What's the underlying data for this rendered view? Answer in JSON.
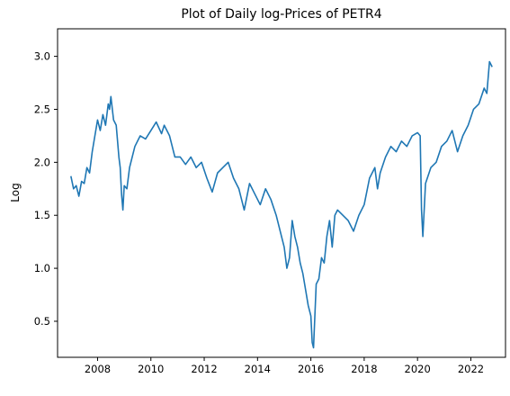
{
  "chart_data": {
    "type": "line",
    "title": "Plot of Daily log-Prices of PETR4",
    "xlabel": "",
    "ylabel": "Log",
    "xlim": [
      2006.5,
      2023.3
    ],
    "ylim": [
      0.16,
      3.26
    ],
    "x_ticks": [
      2008,
      2010,
      2012,
      2014,
      2016,
      2018,
      2020,
      2022
    ],
    "x_tick_labels": [
      "2008",
      "2010",
      "2012",
      "2014",
      "2016",
      "2018",
      "2020",
      "2022"
    ],
    "y_ticks": [
      0.5,
      1.0,
      1.5,
      2.0,
      2.5,
      3.0
    ],
    "y_tick_labels": [
      "0.5",
      "1.0",
      "1.5",
      "2.0",
      "2.5",
      "3.0"
    ],
    "grid": false,
    "line_color": "#1f77b4",
    "series": [
      {
        "x": [
          2007.0,
          2007.1,
          2007.2,
          2007.3,
          2007.4,
          2007.5,
          2007.6,
          2007.7,
          2007.8,
          2007.9,
          2008.0,
          2008.1,
          2008.2,
          2008.3,
          2008.4,
          2008.45,
          2008.5,
          2008.6,
          2008.7,
          2008.8,
          2008.85,
          2008.9,
          2008.95,
          2009.0,
          2009.1,
          2009.2,
          2009.3,
          2009.4,
          2009.6,
          2009.8,
          2010.0,
          2010.2,
          2010.4,
          2010.5,
          2010.7,
          2010.9,
          2011.1,
          2011.3,
          2011.5,
          2011.7,
          2011.9,
          2012.1,
          2012.3,
          2012.5,
          2012.7,
          2012.9,
          2013.1,
          2013.3,
          2013.5,
          2013.7,
          2013.9,
          2014.1,
          2014.3,
          2014.5,
          2014.7,
          2014.85,
          2015.0,
          2015.1,
          2015.2,
          2015.3,
          2015.4,
          2015.5,
          2015.6,
          2015.7,
          2015.8,
          2015.9,
          2016.0,
          2016.05,
          2016.1,
          2016.2,
          2016.3,
          2016.4,
          2016.5,
          2016.6,
          2016.7,
          2016.8,
          2016.9,
          2017.0,
          2017.2,
          2017.4,
          2017.6,
          2017.8,
          2018.0,
          2018.2,
          2018.4,
          2018.5,
          2018.6,
          2018.8,
          2019.0,
          2019.2,
          2019.4,
          2019.6,
          2019.8,
          2020.0,
          2020.1,
          2020.15,
          2020.2,
          2020.3,
          2020.5,
          2020.7,
          2020.9,
          2021.1,
          2021.3,
          2021.5,
          2021.7,
          2021.9,
          2022.1,
          2022.3,
          2022.5,
          2022.6,
          2022.7,
          2022.8
        ],
        "y": [
          1.87,
          1.75,
          1.78,
          1.68,
          1.82,
          1.8,
          1.95,
          1.9,
          2.1,
          2.25,
          2.4,
          2.3,
          2.45,
          2.35,
          2.55,
          2.5,
          2.62,
          2.4,
          2.35,
          2.05,
          1.95,
          1.7,
          1.55,
          1.78,
          1.75,
          1.95,
          2.05,
          2.15,
          2.25,
          2.22,
          2.3,
          2.38,
          2.27,
          2.35,
          2.25,
          2.05,
          2.05,
          1.98,
          2.05,
          1.95,
          2.0,
          1.85,
          1.72,
          1.9,
          1.95,
          2.0,
          1.85,
          1.75,
          1.55,
          1.8,
          1.7,
          1.6,
          1.75,
          1.65,
          1.5,
          1.35,
          1.2,
          1.0,
          1.1,
          1.45,
          1.3,
          1.2,
          1.05,
          0.95,
          0.8,
          0.65,
          0.55,
          0.3,
          0.25,
          0.85,
          0.9,
          1.1,
          1.05,
          1.3,
          1.45,
          1.2,
          1.5,
          1.55,
          1.5,
          1.45,
          1.35,
          1.5,
          1.6,
          1.85,
          1.95,
          1.75,
          1.9,
          2.05,
          2.15,
          2.1,
          2.2,
          2.15,
          2.25,
          2.28,
          2.25,
          1.55,
          1.3,
          1.8,
          1.95,
          2.0,
          2.15,
          2.2,
          2.3,
          2.1,
          2.25,
          2.35,
          2.5,
          2.55,
          2.7,
          2.65,
          2.95,
          2.9
        ]
      }
    ]
  }
}
